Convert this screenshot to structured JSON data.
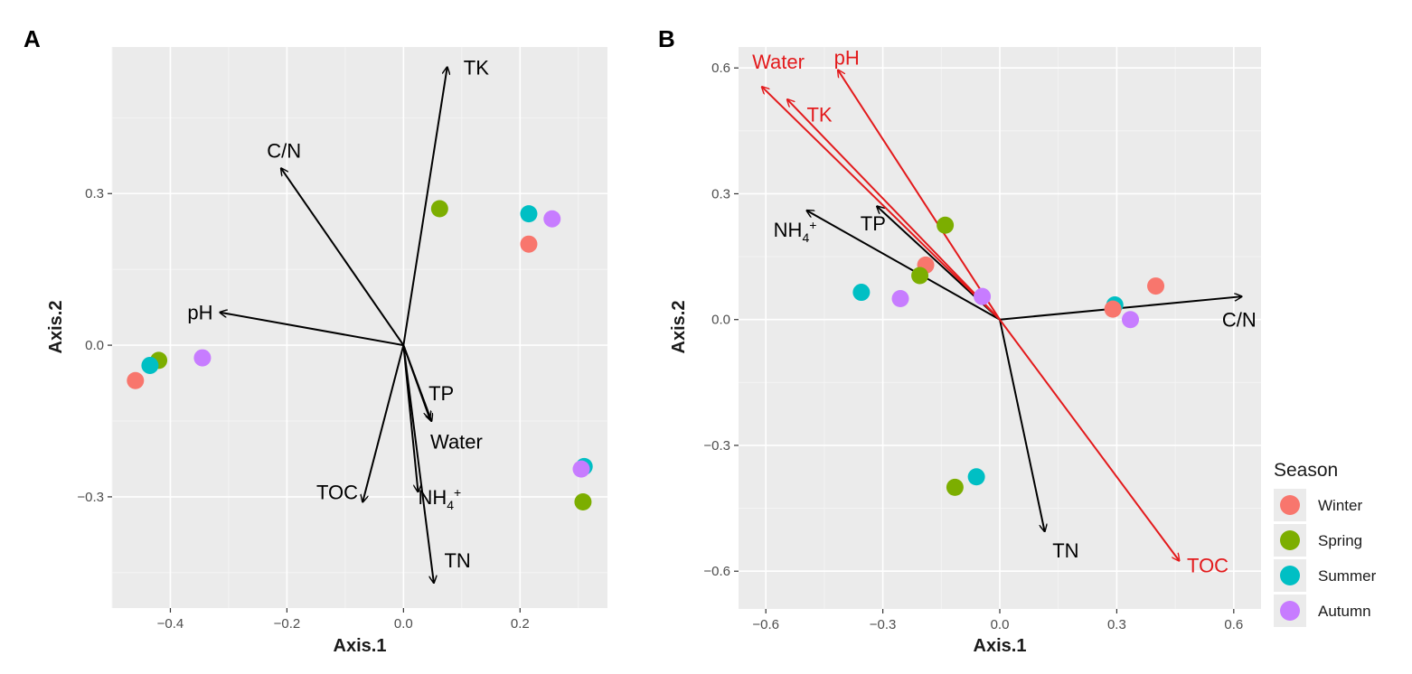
{
  "chart_data": [
    {
      "type": "scatter",
      "panel_label": "A",
      "xlabel": "Axis.1",
      "ylabel": "Axis.2",
      "xlim": [
        -0.5,
        0.35
      ],
      "ylim": [
        -0.52,
        0.59
      ],
      "xticks": [
        -0.4,
        -0.2,
        0.0,
        0.2
      ],
      "xtick_labels": [
        "−0.4",
        "−0.2",
        "0.0",
        "0.2"
      ],
      "yticks": [
        -0.3,
        0.0,
        0.3
      ],
      "ytick_labels": [
        "−0.3",
        "0.0",
        "0.3"
      ],
      "grid": true,
      "points": [
        {
          "season": "Winter",
          "x": -0.46,
          "y": -0.07
        },
        {
          "season": "Spring",
          "x": -0.42,
          "y": -0.03
        },
        {
          "season": "Summer",
          "x": -0.435,
          "y": -0.04
        },
        {
          "season": "Autumn",
          "x": -0.345,
          "y": -0.025
        },
        {
          "season": "Spring",
          "x": 0.062,
          "y": 0.27
        },
        {
          "season": "Summer",
          "x": 0.215,
          "y": 0.26
        },
        {
          "season": "Autumn",
          "x": 0.255,
          "y": 0.25
        },
        {
          "season": "Winter",
          "x": 0.215,
          "y": 0.2
        },
        {
          "season": "Summer",
          "x": 0.31,
          "y": -0.24
        },
        {
          "season": "Autumn",
          "x": 0.305,
          "y": -0.245
        },
        {
          "season": "Spring",
          "x": 0.308,
          "y": -0.31
        }
      ],
      "vectors": [
        {
          "label": "TK",
          "x": 0.075,
          "y": 0.55,
          "color": "#000000",
          "label_dx": 0.028,
          "label_dy": 0.0,
          "anchor": "start"
        },
        {
          "label": "C/N",
          "x": -0.21,
          "y": 0.35,
          "color": "#000000",
          "label_dx": 0.005,
          "label_dy": 0.035,
          "anchor": "middle"
        },
        {
          "label": "pH",
          "x": -0.315,
          "y": 0.065,
          "color": "#000000",
          "label_dx": -0.012,
          "label_dy": 0.0,
          "anchor": "end"
        },
        {
          "label": "TP",
          "x": 0.045,
          "y": -0.145,
          "color": "#000000",
          "label_dx": -0.002,
          "label_dy": 0.05,
          "anchor": "start"
        },
        {
          "label": "Water",
          "x": 0.048,
          "y": -0.15,
          "color": "#000000",
          "label_dx": -0.002,
          "label_dy": -0.04,
          "anchor": "start"
        },
        {
          "label": "NH4+",
          "x": 0.025,
          "y": -0.29,
          "color": "#000000",
          "label_dx": 0.0,
          "label_dy": -0.01,
          "anchor": "start",
          "chem": true
        },
        {
          "label": "TOC",
          "x": -0.07,
          "y": -0.31,
          "color": "#000000",
          "label_dx": -0.008,
          "label_dy": 0.02,
          "anchor": "end"
        },
        {
          "label": "TN",
          "x": 0.052,
          "y": -0.47,
          "color": "#000000",
          "label_dx": 0.018,
          "label_dy": 0.045,
          "anchor": "start"
        }
      ]
    },
    {
      "type": "scatter",
      "panel_label": "B",
      "xlabel": "Axis.1",
      "ylabel": "Axis.2",
      "xlim": [
        -0.67,
        0.67
      ],
      "ylim": [
        -0.69,
        0.65
      ],
      "xticks": [
        -0.6,
        -0.3,
        0.0,
        0.3,
        0.6
      ],
      "xtick_labels": [
        "−0.6",
        "−0.3",
        "0.0",
        "0.3",
        "0.6"
      ],
      "yticks": [
        -0.6,
        -0.3,
        0.0,
        0.3,
        0.6
      ],
      "ytick_labels": [
        "−0.6",
        "−0.3",
        "0.0",
        "0.3",
        "0.6"
      ],
      "grid": true,
      "points": [
        {
          "season": "Spring",
          "x": -0.14,
          "y": 0.225
        },
        {
          "season": "Winter",
          "x": -0.19,
          "y": 0.13
        },
        {
          "season": "Spring",
          "x": -0.205,
          "y": 0.105
        },
        {
          "season": "Summer",
          "x": -0.355,
          "y": 0.065
        },
        {
          "season": "Autumn",
          "x": -0.255,
          "y": 0.05
        },
        {
          "season": "Autumn",
          "x": -0.045,
          "y": 0.055
        },
        {
          "season": "Winter",
          "x": 0.4,
          "y": 0.08
        },
        {
          "season": "Summer",
          "x": 0.295,
          "y": 0.035
        },
        {
          "season": "Winter",
          "x": 0.29,
          "y": 0.025
        },
        {
          "season": "Autumn",
          "x": 0.335,
          "y": 0.0
        },
        {
          "season": "Summer",
          "x": -0.06,
          "y": -0.375
        },
        {
          "season": "Spring",
          "x": -0.115,
          "y": -0.4
        }
      ],
      "vectors": [
        {
          "label": "Water",
          "x": -0.61,
          "y": 0.555,
          "color": "#e31a1c",
          "label_dx": -0.025,
          "label_dy": 0.06,
          "anchor": "start"
        },
        {
          "label": "pH",
          "x": -0.415,
          "y": 0.595,
          "color": "#e31a1c",
          "label_dx": -0.01,
          "label_dy": 0.03,
          "anchor": "start"
        },
        {
          "label": "TK",
          "x": -0.545,
          "y": 0.525,
          "color": "#e31a1c",
          "label_dx": 0.05,
          "label_dy": -0.035,
          "anchor": "start"
        },
        {
          "label": "NH4+",
          "x": -0.495,
          "y": 0.26,
          "color": "#000000",
          "label_dx": -0.03,
          "label_dy": -0.045,
          "anchor": "middle",
          "chem": true
        },
        {
          "label": "TP",
          "x": -0.315,
          "y": 0.27,
          "color": "#000000",
          "label_dx": -0.01,
          "label_dy": -0.04,
          "anchor": "middle"
        },
        {
          "label": "C/N",
          "x": 0.62,
          "y": 0.055,
          "color": "#000000",
          "label_dx": -0.05,
          "label_dy": -0.055,
          "anchor": "start"
        },
        {
          "label": "TN",
          "x": 0.115,
          "y": -0.505,
          "color": "#000000",
          "label_dx": 0.02,
          "label_dy": -0.045,
          "anchor": "start"
        },
        {
          "label": "TOC",
          "x": 0.46,
          "y": -0.575,
          "color": "#e31a1c",
          "label_dx": 0.02,
          "label_dy": -0.01,
          "anchor": "start"
        }
      ]
    }
  ],
  "legend": {
    "title": "Season",
    "items": [
      {
        "label": "Winter",
        "color": "#f8766d"
      },
      {
        "label": "Spring",
        "color": "#7cae00"
      },
      {
        "label": "Summer",
        "color": "#00bfc4"
      },
      {
        "label": "Autumn",
        "color": "#c77cff"
      }
    ]
  },
  "colors": {
    "panel_background": "#ebebeb",
    "grid": "#ffffff",
    "black_vector": "#000000",
    "red_vector": "#e31a1c"
  }
}
